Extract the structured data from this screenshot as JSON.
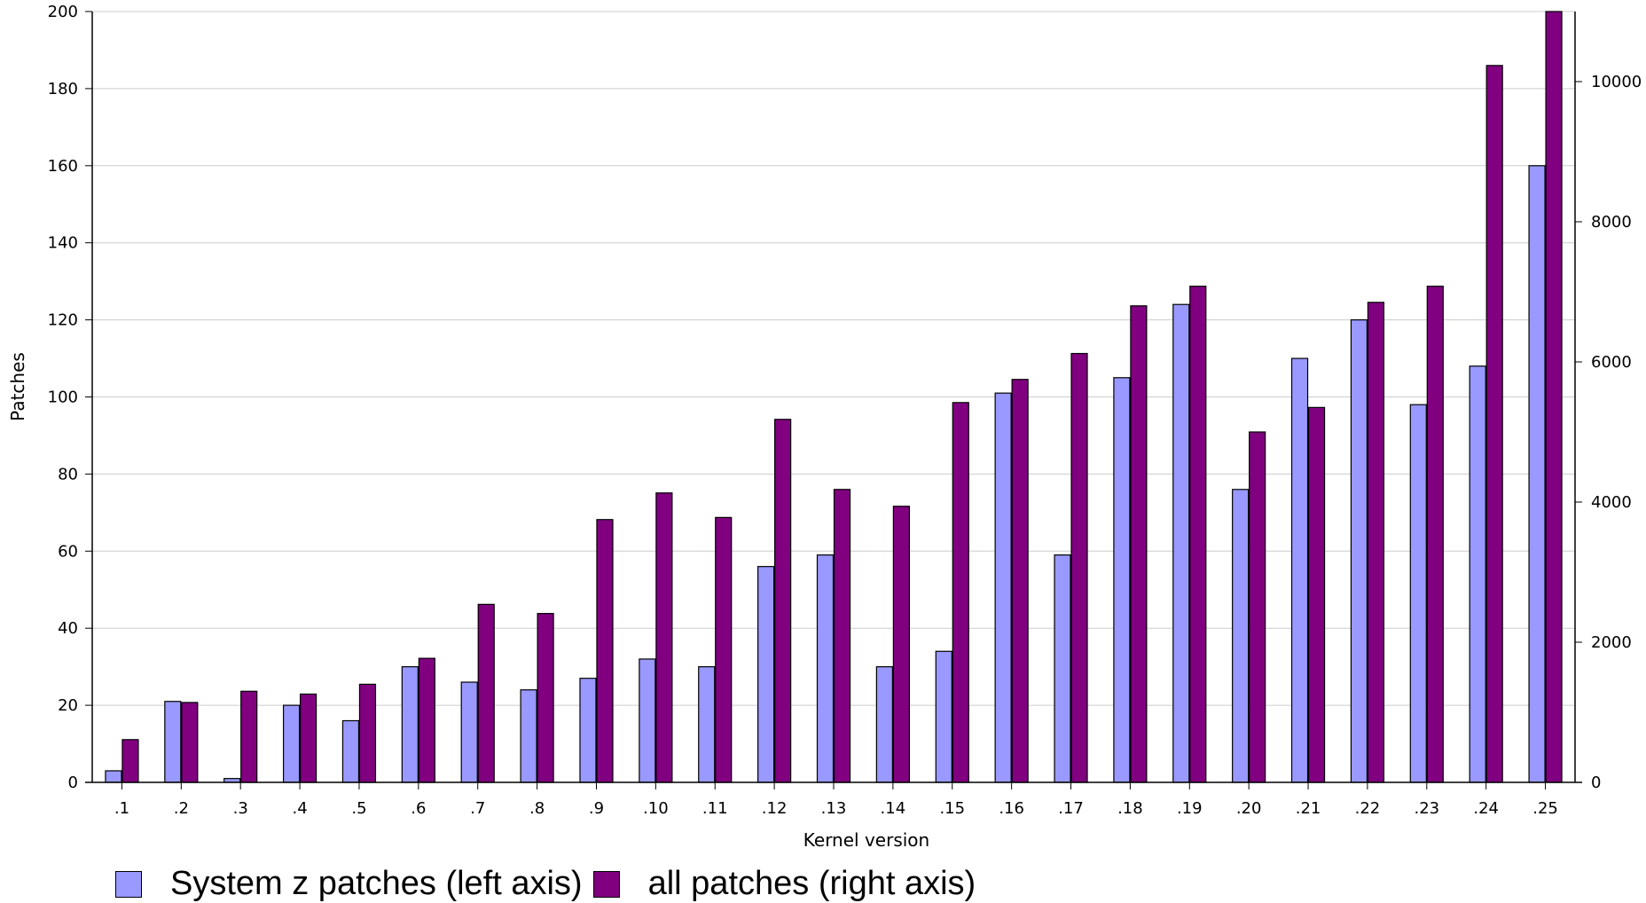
{
  "chart_data": {
    "type": "bar",
    "title": "",
    "xlabel": "Kernel version",
    "ylabel": "Patches",
    "ylabel_right": "",
    "categories": [
      ".1",
      ".2",
      ".3",
      ".4",
      ".5",
      ".6",
      ".7",
      ".8",
      ".9",
      ".10",
      ".11",
      ".12",
      ".13",
      ".14",
      ".15",
      ".16",
      ".17",
      ".18",
      ".19",
      ".20",
      ".21",
      ".22",
      ".23",
      ".24",
      ".25"
    ],
    "ylim": [
      0,
      200
    ],
    "ylim_right": [
      0,
      11000
    ],
    "yticks": [
      0,
      20,
      40,
      60,
      80,
      100,
      120,
      140,
      160,
      180,
      200
    ],
    "yticks_right": [
      0,
      2000,
      4000,
      6000,
      8000,
      10000
    ],
    "grid": true,
    "legend_position": "bottom",
    "series": [
      {
        "name": "System z patches (left axis)",
        "axis": "left",
        "color": "#9999ff",
        "values": [
          3,
          21,
          1,
          20,
          16,
          30,
          26,
          24,
          27,
          32,
          30,
          56,
          59,
          30,
          34,
          101,
          59,
          105,
          124,
          76,
          110,
          120,
          98,
          108,
          160
        ]
      },
      {
        "name": "all patches (right axis)",
        "axis": "right",
        "color": "#800080",
        "values": [
          610,
          1140,
          1300,
          1260,
          1400,
          1770,
          2540,
          2410,
          3750,
          4130,
          3780,
          5180,
          4180,
          3940,
          5420,
          5750,
          6120,
          6800,
          7080,
          5000,
          5350,
          6850,
          7080,
          10230,
          11000
        ]
      }
    ]
  }
}
